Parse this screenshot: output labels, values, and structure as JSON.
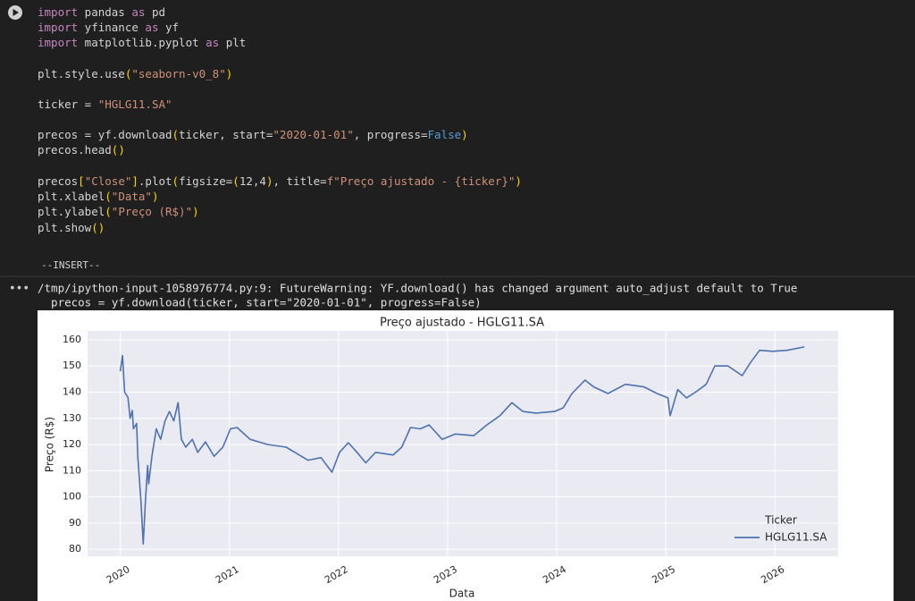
{
  "code": {
    "lines": [
      "import pandas as pd",
      "import yfinance as yf",
      "import matplotlib.pyplot as plt",
      "plt.style.use(\"seaborn-v0_8\")",
      "ticker = \"HGLG11.SA\"",
      "precos = yf.download(ticker, start=\"2020-01-01\", progress=False)",
      "precos.head()",
      "precos[\"Close\"].plot(figsize=(12,4), title=f\"Preço ajustado - {ticker}\")",
      "plt.xlabel(\"Data\")",
      "plt.ylabel(\"Preço (R$)\")",
      "plt.show()"
    ],
    "mode": "--INSERT--"
  },
  "output": {
    "warning": [
      "/tmp/ipython-input-1058976774.py:9: FutureWarning: YF.download() has changed argument auto_adjust default to True",
      "  precos = yf.download(ticker, start=\"2020-01-01\", progress=False)"
    ]
  },
  "chart_data": {
    "type": "line",
    "title": "Preço ajustado - HGLG11.SA",
    "x_label": "Data",
    "y_label": "Preço (R$)",
    "legend_title": "Ticker",
    "legend": "lower right",
    "grid": true,
    "x": [
      2020.0,
      2020.02,
      2020.04,
      2020.07,
      2020.09,
      2020.11,
      2020.12,
      2020.15,
      2020.16,
      2020.19,
      2020.21,
      2020.23,
      2020.25,
      2020.26,
      2020.29,
      2020.33,
      2020.37,
      2020.41,
      2020.45,
      2020.49,
      2020.53,
      2020.56,
      2020.6,
      2020.66,
      2020.71,
      2020.78,
      2020.86,
      2020.94,
      2021.01,
      2021.07,
      2021.19,
      2021.27,
      2021.35,
      2021.52,
      2021.6,
      2021.72,
      2021.84,
      2021.94,
      2022.01,
      2022.09,
      2022.17,
      2022.25,
      2022.34,
      2022.5,
      2022.58,
      2022.66,
      2022.75,
      2022.83,
      2022.95,
      2023.07,
      2023.24,
      2023.36,
      2023.48,
      2023.59,
      2023.69,
      2023.81,
      2023.98,
      2024.06,
      2024.14,
      2024.26,
      2024.34,
      2024.47,
      2024.63,
      2024.8,
      2024.92,
      2025.02,
      2025.04,
      2025.11,
      2025.19,
      2025.29,
      2025.37,
      2025.45,
      2025.57,
      2025.7,
      2025.78,
      2025.86,
      2025.98,
      2026.11,
      2026.27
    ],
    "series": [
      {
        "name": "HGLG11.SA",
        "color": "#4c72b0",
        "values": [
          148,
          154,
          140,
          138,
          130,
          133,
          126,
          128,
          115.5,
          98,
          82,
          98,
          112,
          105,
          115.5,
          126,
          122,
          129,
          132.6,
          129,
          136,
          122,
          119,
          122,
          117,
          121,
          115.5,
          119,
          126,
          126.5,
          122,
          121,
          120,
          119,
          117,
          114,
          115,
          109.4,
          117,
          120.7,
          117,
          113,
          117,
          116,
          119,
          126.5,
          126,
          127.5,
          122,
          124,
          123.4,
          127.5,
          131,
          136,
          132.6,
          132,
          132.6,
          134,
          139.5,
          144.6,
          142,
          139.5,
          143,
          142,
          139.5,
          137.8,
          131,
          141,
          137.8,
          140.5,
          143,
          150,
          150,
          146.3,
          151.5,
          156,
          155.6,
          156,
          157.3
        ]
      }
    ],
    "xlim": [
      2019.7,
      2026.58
    ],
    "xticks": [
      2020,
      2021,
      2022,
      2023,
      2024,
      2025,
      2026
    ],
    "ylim": [
      77.3,
      163.4
    ],
    "yticks": [
      80,
      90,
      100,
      110,
      120,
      130,
      140,
      150,
      160
    ]
  }
}
